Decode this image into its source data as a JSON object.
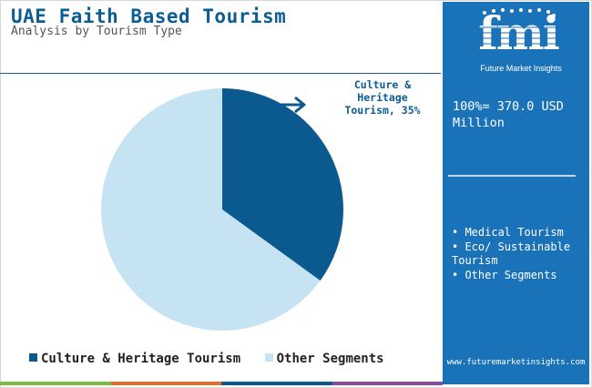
{
  "header": {
    "title": "UAE Faith Based Tourism",
    "subtitle": "Analysis by Tourism Type"
  },
  "chart_data": {
    "type": "pie",
    "slices": [
      {
        "name": "Culture & Heritage Tourism",
        "value": 35,
        "color": "#0b5a8f"
      },
      {
        "name": "Other Segments",
        "value": 65,
        "color": "#c6e3f3"
      }
    ],
    "callout": "Culture & Heritage Tourism, 35%",
    "legend_position": "bottom"
  },
  "legend": {
    "items": [
      {
        "label": "Culture & Heritage Tourism",
        "color": "#0b5a8f"
      },
      {
        "label": "Other Segments",
        "color": "#c6e3f3"
      }
    ]
  },
  "panel": {
    "logo_text": "fmi",
    "logo_tagline": "Future Market Insights",
    "total": "100%= 370.0 USD Million",
    "other_segments": [
      "Medical Tourism",
      "Eco/ Sustainable Tourism",
      "Other Segments"
    ],
    "url": "www.futuremarketinsights.com",
    "background_color": "#1a73b8"
  },
  "footer_bar_colors": [
    "#7dbb42",
    "#e36e2c",
    "#0b5a8f",
    "#8a4b9c"
  ]
}
